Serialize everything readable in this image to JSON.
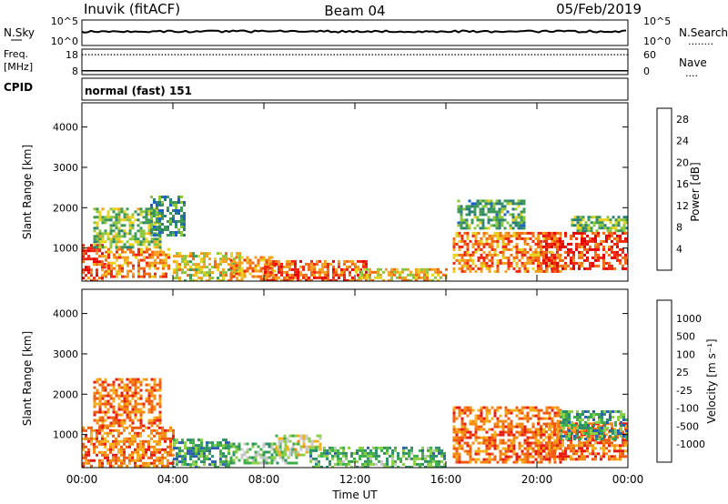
{
  "header": {
    "station": "Inuvik  (fitACF)",
    "beam": "Beam 04",
    "date": "05/Feb/2019"
  },
  "strip_panels": {
    "nsky": {
      "left_label": "N.Sky",
      "left_ticks": [
        "10^5",
        "10^0"
      ],
      "right_ticks": [
        "10^5",
        "10^0"
      ],
      "right_label": "N.Search",
      "right_label_dots": "........",
      "level": 0.55
    },
    "freq": {
      "left_label": "Freq.",
      "left_unit": "[MHz]",
      "left_ticks": [
        "18",
        "8"
      ],
      "right_ticks": [
        "60",
        "0"
      ],
      "right_label": "Nave",
      "right_label_dots": "....",
      "freq_level": 0.15,
      "nave_level": 0.78
    },
    "cpid": {
      "label": "CPID",
      "text": "normal (fast) 151"
    }
  },
  "chart_data": [
    {
      "type": "heatmap",
      "title": "",
      "ylabel": "Slant Range [km]",
      "xlabel": "",
      "xlim": [
        0,
        24
      ],
      "ylim": [
        180,
        4600
      ],
      "y_ticks": [
        "1000",
        "2000",
        "3000",
        "4000"
      ],
      "colorbar": {
        "label": "Power [dB]",
        "ticks": [
          "4",
          "8",
          "12",
          "16",
          "20",
          "24",
          "28"
        ],
        "colors": [
          "#1010ff",
          "#1e5fc8",
          "#2a7f7a",
          "#3d9a55",
          "#8cc63f",
          "#e8d21b",
          "#f4a11e",
          "#f26a12",
          "#ee2810",
          "#e60000"
        ]
      },
      "echo_regions": [
        {
          "x": [
            0.0,
            1.0
          ],
          "y": [
            200,
            1100
          ],
          "level": 0.82
        },
        {
          "x": [
            1.0,
            3.8
          ],
          "y": [
            300,
            1000
          ],
          "level": 0.7
        },
        {
          "x": [
            0.5,
            3.5
          ],
          "y": [
            1000,
            2000
          ],
          "level": 0.45
        },
        {
          "x": [
            3.0,
            4.5
          ],
          "y": [
            1300,
            2300
          ],
          "level": 0.3
        },
        {
          "x": [
            4.0,
            7.0
          ],
          "y": [
            200,
            900
          ],
          "level": 0.55
        },
        {
          "x": [
            6.5,
            8.5
          ],
          "y": [
            200,
            800
          ],
          "level": 0.72
        },
        {
          "x": [
            8.0,
            12.5
          ],
          "y": [
            200,
            700
          ],
          "level": 0.78
        },
        {
          "x": [
            12.0,
            16.0
          ],
          "y": [
            200,
            500
          ],
          "level": 0.6
        },
        {
          "x": [
            16.3,
            21.0
          ],
          "y": [
            400,
            1400
          ],
          "level": 0.72
        },
        {
          "x": [
            16.5,
            19.5
          ],
          "y": [
            1500,
            2200
          ],
          "level": 0.35
        },
        {
          "x": [
            20.0,
            24.0
          ],
          "y": [
            500,
            1400
          ],
          "level": 0.85
        },
        {
          "x": [
            21.5,
            24.0
          ],
          "y": [
            1400,
            1800
          ],
          "level": 0.4
        }
      ]
    },
    {
      "type": "heatmap",
      "title": "",
      "ylabel": "Slant Range [km]",
      "xlabel": "Time UT",
      "xlim": [
        0,
        24
      ],
      "ylim": [
        180,
        4600
      ],
      "x_ticks": [
        "00:00",
        "04:00",
        "08:00",
        "12:00",
        "16:00",
        "20:00",
        "00:00"
      ],
      "y_ticks": [
        "1000",
        "2000",
        "3000",
        "4000"
      ],
      "colorbar": {
        "label": "Velocity  [m s⁻¹]",
        "ticks": [
          "1000",
          "500",
          "100",
          "25",
          "-25",
          "-100",
          "-500",
          "-1000"
        ],
        "colors": [
          "#1a1ae6",
          "#2c5fb0",
          "#2f8f6a",
          "#3fae49",
          "#8cd04a",
          "#c8c8c8",
          "#f5b01c",
          "#f48a12",
          "#f05a10",
          "#e61a10"
        ]
      },
      "echo_regions": [
        {
          "x": [
            0.0,
            4.0
          ],
          "y": [
            200,
            1200
          ],
          "level": 0.78
        },
        {
          "x": [
            0.5,
            3.5
          ],
          "y": [
            1200,
            2400
          ],
          "level": 0.8
        },
        {
          "x": [
            4.0,
            6.5
          ],
          "y": [
            200,
            900
          ],
          "level": 0.3
        },
        {
          "x": [
            6.5,
            9.5
          ],
          "y": [
            300,
            800
          ],
          "level": 0.42
        },
        {
          "x": [
            8.5,
            10.5
          ],
          "y": [
            500,
            1000
          ],
          "level": 0.55
        },
        {
          "x": [
            10.0,
            16.0
          ],
          "y": [
            200,
            700
          ],
          "level": 0.35
        },
        {
          "x": [
            16.3,
            21.0
          ],
          "y": [
            300,
            1700
          ],
          "level": 0.8
        },
        {
          "x": [
            20.0,
            24.0
          ],
          "y": [
            400,
            1300
          ],
          "level": 0.82
        },
        {
          "x": [
            21.0,
            24.0
          ],
          "y": [
            900,
            1600
          ],
          "level": 0.3
        }
      ]
    }
  ]
}
